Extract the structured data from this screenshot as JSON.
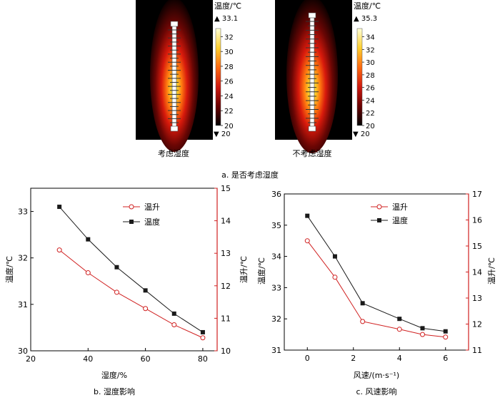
{
  "thermal": {
    "panels": [
      {
        "caption": "考虑湿度",
        "scale_unit": "温度/℃",
        "max_label": "▲ 33.1",
        "min_label": "▼ 20",
        "scale_ticks": [
          "32",
          "30",
          "28",
          "26",
          "24",
          "22",
          "20"
        ],
        "scale_min": 20,
        "scale_max": 33.1
      },
      {
        "caption": "不考虑湿度",
        "scale_unit": "温度/℃",
        "max_label": "▲ 35.3",
        "min_label": "▼ 20",
        "scale_ticks": [
          "34",
          "32",
          "30",
          "28",
          "26",
          "24",
          "22",
          "20"
        ],
        "scale_min": 20,
        "scale_max": 35.3
      }
    ],
    "caption": "a. 是否考虑湿度"
  },
  "colors": {
    "series_red": "#d02020",
    "series_black": "#1a1a1a",
    "right_axis": "#d02020"
  },
  "chart_data": [
    {
      "type": "line",
      "caption": "b. 湿度影响",
      "xlabel": "湿度/%",
      "ylabel": "温度/℃",
      "y2label": "温升/℃",
      "xlim": [
        20,
        85
      ],
      "ylim": [
        30,
        33.5
      ],
      "y2lim": [
        10,
        15
      ],
      "x_ticks": [
        20,
        40,
        60,
        80
      ],
      "y_ticks": [
        30,
        31,
        32,
        33
      ],
      "y2_ticks": [
        10,
        11,
        12,
        13,
        14,
        15
      ],
      "x": [
        30,
        40,
        50,
        60,
        70,
        80
      ],
      "legend_position": "top-center",
      "series": [
        {
          "name": "温升",
          "axis": "right",
          "marker": "open-circle",
          "color": "#d02020",
          "values": [
            13.1,
            12.4,
            11.8,
            11.3,
            10.8,
            10.4
          ]
        },
        {
          "name": "温度",
          "axis": "left",
          "marker": "filled-square",
          "color": "#1a1a1a",
          "values": [
            33.1,
            32.4,
            31.8,
            31.3,
            30.8,
            30.4
          ]
        }
      ],
      "grid": false
    },
    {
      "type": "line",
      "caption": "c. 风速影响",
      "xlabel": "风速/(m·s⁻¹)",
      "ylabel": "温度/℃",
      "y2label": "温升/℃",
      "xlim": [
        -1,
        7
      ],
      "ylim": [
        31,
        36
      ],
      "y2lim": [
        11,
        17
      ],
      "x_ticks": [
        0,
        2,
        4,
        6
      ],
      "y_ticks": [
        31,
        32,
        33,
        34,
        35,
        36
      ],
      "y2_ticks": [
        11,
        12,
        13,
        14,
        15,
        16,
        17
      ],
      "x": [
        0,
        1.2,
        2.4,
        4,
        5,
        6
      ],
      "legend_position": "top-center",
      "series": [
        {
          "name": "温升",
          "axis": "right",
          "marker": "open-circle",
          "color": "#d02020",
          "values": [
            15.2,
            13.8,
            12.1,
            11.8,
            11.6,
            11.5
          ]
        },
        {
          "name": "温度",
          "axis": "left",
          "marker": "filled-square",
          "color": "#1a1a1a",
          "values": [
            35.3,
            34.0,
            32.5,
            32.0,
            31.7,
            31.6
          ]
        }
      ],
      "grid": false
    }
  ]
}
